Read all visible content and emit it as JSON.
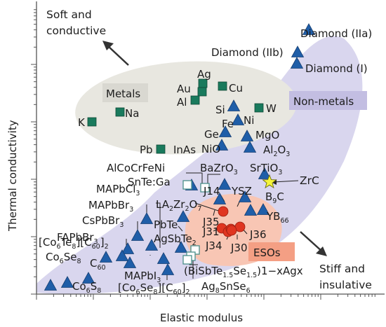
{
  "chart_data": {
    "type": "scatter",
    "title": "",
    "xlabel": "Elastic modulus",
    "ylabel": "Thermal conductivity",
    "xscale": "log",
    "yscale": "log",
    "grid": false,
    "legend": "none",
    "corner_labels": {
      "top_left": [
        "Soft and",
        "conductive"
      ],
      "bottom_right": [
        "Stiff and",
        "insulative"
      ]
    },
    "regions": [
      {
        "name": "Metals",
        "color": "#e6e5df"
      },
      {
        "name": "Non-metals",
        "color": "#d7d4ec"
      },
      {
        "name": "ESOs",
        "color": "#f7c4b2"
      }
    ],
    "colors": {
      "non_metal_marker": "#1f5ea8",
      "metal_marker": "#197a5c",
      "eso_marker": "#e03520",
      "highlight_marker": "#f5f53a",
      "open_marker": "#4a8f8a",
      "axis": "#555555"
    },
    "marker_groups": {
      "non_metals": [
        "Diamond (IIa)",
        "Diamond (IIb)",
        "Diamond (I)",
        "Si",
        "Fe",
        "Ge",
        "MgO",
        "NiO",
        "Al2O3",
        "InAs",
        "BaZrO3",
        "SrTiO3",
        "LA2Zr2O7",
        "J14",
        "YSZ",
        "B9C",
        "YB66",
        "PbTe",
        "J35",
        "J31",
        "J34",
        "J30",
        "J36",
        "AgSbTe2",
        "MAPbCl3",
        "MAPbBr3",
        "CsPbBr3",
        "FAPbBr3",
        "[Co6Te8][C60]2",
        "Co6Se8",
        "C60",
        "Co6S8",
        "[Co6Se8][C60]2",
        "MAPbI3"
      ],
      "metals": [
        "K",
        "Na",
        "Ag",
        "Au",
        "Al",
        "Cu",
        "W",
        "Ni",
        "Pb"
      ],
      "esos": [
        "J35",
        "J31",
        "J34",
        "J30",
        "J36"
      ],
      "highlighted": [
        "ZrC"
      ],
      "open_squares": [
        "AlCoCrFeNi",
        "SnTe:Ga",
        "(BiSbTe1.5Se1.5)1-xAgx",
        "Ag8SnSe6"
      ]
    }
  },
  "labels": {
    "diamond_iia": "Diamond (IIa)",
    "diamond_iib": "Diamond (IIb)",
    "diamond_i": "Diamond (I)",
    "ag": "Ag",
    "cu": "Cu",
    "au": "Au",
    "al": "Al",
    "si": "Si",
    "w": "W",
    "fe": "Fe",
    "ni": "Ni",
    "k": "K",
    "na": "Na",
    "ge": "Ge",
    "mgo": "MgO",
    "nio": "NiO",
    "pb": "Pb",
    "inas": "InAs",
    "al2o3_a": "Al",
    "al2o3_b": "2",
    "al2o3_c": "O",
    "al2o3_d": "3",
    "alcocrfeni": "AlCoCrFeNi",
    "bazro3_a": "BaZrO",
    "bazro3_b": "3",
    "srtio3_a": "SrTiO",
    "srtio3_b": "3",
    "snte_ga": "SnTe:Ga",
    "zrc": "ZrC",
    "mapbcl3_a": "MAPbCl",
    "mapbcl3_b": "3",
    "la2zr2o7_a": "LA",
    "la2zr2o7_b": "2",
    "la2zr2o7_c": "Zr",
    "la2zr2o7_d": "2",
    "la2zr2o7_e": "O",
    "la2zr2o7_f": "7",
    "j14": "J14",
    "ysz": "YSZ",
    "b9c_a": "B",
    "b9c_b": "9",
    "b9c_c": "C",
    "mapbbr3_a": "MAPbBr",
    "mapbbr3_b": "3",
    "cspbbr3_a": "CsPbBr",
    "cspbbr3_b": "3",
    "fapbbr3_a": "FAPbBr",
    "fapbbr3_b": "3",
    "j35": "J35",
    "yb66_a": "YB",
    "yb66_b": "66",
    "pbte": "PbTe",
    "j31": "J31",
    "j36": "J36",
    "j34": "J34",
    "j30": "J30",
    "agsbte2_a": "AgSbTe",
    "agsbte2_b": "2",
    "co6te8_a": "[Co",
    "co6te8_b": "6",
    "co6te8_c": "Te",
    "co6te8_d": "8",
    "co6te8_e": "][C",
    "co6te8_f": "60",
    "co6te8_g": "]",
    "co6te8_h": "2",
    "co6se8_a": "Co",
    "co6se8_b": "6",
    "co6se8_c": "Se",
    "co6se8_d": "8",
    "c60_a": "C",
    "c60_b": "60",
    "esos": "ESOs",
    "metals": "Metals",
    "non_metals": "Non-metals",
    "mapbi3_a": "MAPbI",
    "mapbi3_b": "3",
    "bisbte_a": "(BiSbTe",
    "bisbte_b": "1.5",
    "bisbte_c": "Se",
    "bisbte_d": "1.5",
    "bisbte_e": ")1−xAgx",
    "co6s8_a": "Co",
    "co6s8_b": "6",
    "co6s8_c": "S",
    "co6s8_d": "8",
    "co6se8c60_a": "[Co",
    "co6se8c60_b": "6",
    "co6se8c60_c": "Se",
    "co6se8c60_d": "8",
    "co6se8c60_e": "][C",
    "co6se8c60_f": "60",
    "co6se8c60_g": "]",
    "co6se8c60_h": "2",
    "ag8snse6_a": "Ag",
    "ag8snse6_b": "8",
    "ag8snse6_c": "SnSe",
    "ag8snse6_d": "6",
    "soft_1": "Soft and",
    "soft_2": "conductive",
    "stiff_1": "Stiff and",
    "stiff_2": "insulative"
  }
}
